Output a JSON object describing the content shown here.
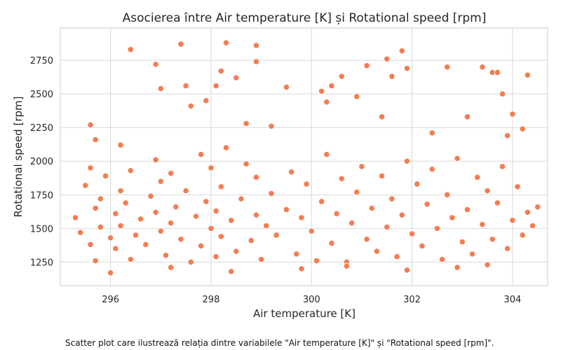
{
  "caption": "Scatter plot care ilustrează relația dintre variabilele \"Air temperature [K]\" și \"Rotational speed [rpm]\".",
  "chart_data": {
    "type": "scatter",
    "title": "Asocierea între Air temperature [K] și Rotational speed [rpm]",
    "xlabel": "Air temperature [K]",
    "ylabel": "Rotational speed [rpm]",
    "xlim": [
      295.0,
      304.7
    ],
    "ylim": [
      1075,
      2990
    ],
    "xticks": [
      296,
      298,
      300,
      302,
      304
    ],
    "yticks": [
      1250,
      1500,
      1750,
      2000,
      2250,
      2500,
      2750
    ],
    "grid": true,
    "marker_color": "#f47c50",
    "marker_edge_color": "#ffffff",
    "background_color": "#ffffff",
    "grid_color": "#d9d9d9",
    "frame_color": "#cccccc",
    "series": [
      {
        "x": [
          295.3,
          295.4,
          295.5,
          295.6,
          295.6,
          295.7,
          295.7,
          295.8,
          295.8,
          295.9,
          296.0,
          296.1,
          296.1,
          296.2,
          296.2,
          296.3,
          296.4,
          296.4,
          296.5,
          296.6,
          296.7,
          296.8,
          296.9,
          296.9,
          297.0,
          297.0,
          297.1,
          297.2,
          297.2,
          297.3,
          297.4,
          297.5,
          297.6,
          297.7,
          297.8,
          297.8,
          297.9,
          298.0,
          298.0,
          298.1,
          298.1,
          298.2,
          298.2,
          298.3,
          298.4,
          298.5,
          298.6,
          298.7,
          298.8,
          298.9,
          298.9,
          299.0,
          299.1,
          299.2,
          299.3,
          299.5,
          299.6,
          299.7,
          299.8,
          299.9,
          300.0,
          300.1,
          300.2,
          300.3,
          300.4,
          300.5,
          300.6,
          300.7,
          300.8,
          300.9,
          301.0,
          301.1,
          301.2,
          301.3,
          301.4,
          301.5,
          301.6,
          301.7,
          301.8,
          301.9,
          302.0,
          302.1,
          302.2,
          302.3,
          302.4,
          302.5,
          302.6,
          302.7,
          302.8,
          302.9,
          303.0,
          303.1,
          303.2,
          303.3,
          303.4,
          303.5,
          303.6,
          303.7,
          303.8,
          303.9,
          304.0,
          304.1,
          304.2,
          304.3,
          304.4,
          304.5,
          295.6,
          295.7,
          296.4,
          296.9,
          297.0,
          297.4,
          297.5,
          297.9,
          298.1,
          298.2,
          298.3,
          298.5,
          298.9,
          298.9,
          299.5,
          300.2,
          300.4,
          300.6,
          300.9,
          301.1,
          301.5,
          301.6,
          301.8,
          301.9,
          302.7,
          303.4,
          303.6,
          303.7,
          303.8,
          304.0,
          304.3,
          296.2,
          297.6,
          298.7,
          299.2,
          300.3,
          301.4,
          302.4,
          303.1,
          303.9,
          304.2,
          296.0,
          297.2,
          298.4,
          299.8,
          300.7,
          301.9,
          302.9,
          303.5
        ],
        "y": [
          1580,
          1470,
          1820,
          1950,
          1380,
          1650,
          1260,
          1510,
          1720,
          1890,
          1430,
          1350,
          1610,
          1780,
          1520,
          1690,
          1270,
          1930,
          1450,
          1570,
          1380,
          1740,
          1620,
          2010,
          1480,
          1850,
          1300,
          1540,
          1910,
          1660,
          1420,
          1780,
          1250,
          1590,
          2050,
          1370,
          1700,
          1500,
          1950,
          1290,
          1630,
          1810,
          1440,
          2100,
          1560,
          1330,
          1720,
          1980,
          1410,
          1600,
          1880,
          1270,
          1520,
          1760,
          1450,
          1640,
          1920,
          1310,
          1580,
          1830,
          1480,
          1260,
          1700,
          2050,
          1390,
          1610,
          1870,
          1250,
          1540,
          1770,
          1960,
          1420,
          1650,
          1330,
          1890,
          1510,
          1720,
          1290,
          1600,
          2000,
          1460,
          1830,
          1370,
          1680,
          1940,
          1500,
          1270,
          1750,
          1580,
          2020,
          1400,
          1640,
          1310,
          1880,
          1530,
          1780,
          1420,
          1690,
          1960,
          1350,
          1560,
          1810,
          1450,
          1620,
          1520,
          1660,
          2270,
          2160,
          2830,
          2720,
          2540,
          2870,
          2560,
          2450,
          2560,
          2670,
          2880,
          2620,
          2860,
          2740,
          2550,
          2520,
          2560,
          2630,
          2480,
          2710,
          2760,
          2630,
          2820,
          2690,
          2700,
          2700,
          2660,
          2660,
          2500,
          2350,
          2640,
          2120,
          2410,
          2280,
          2260,
          2440,
          2330,
          2210,
          2330,
          2190,
          2240,
          1170,
          1210,
          1180,
          1200,
          1220,
          1190,
          1210,
          1230
        ]
      }
    ]
  }
}
